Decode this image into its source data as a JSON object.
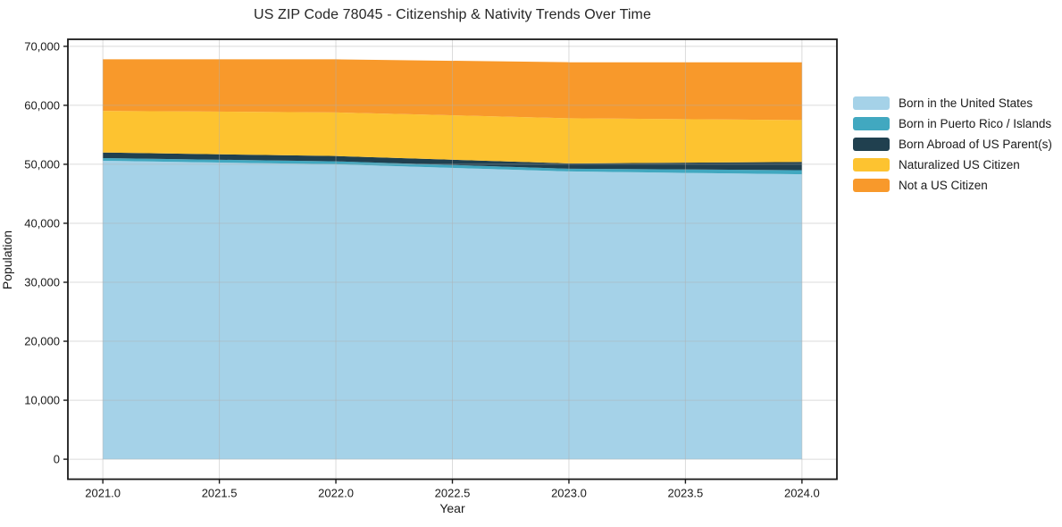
{
  "title": "US ZIP Code 78045 - Citizenship & Nativity Trends Over Time",
  "axes": {
    "xlabel": "Year",
    "ylabel": "Population"
  },
  "colors": {
    "spine": "#1a1a1a",
    "grid": "rgba(176,176,176,0.45)",
    "tick_text": "#1a1a1a",
    "background": "#ffffff"
  },
  "chart_data": {
    "type": "area",
    "stacked": true,
    "title": "US ZIP Code 78045 - Citizenship & Nativity Trends Over Time",
    "xlabel": "Year",
    "ylabel": "Population",
    "grid": true,
    "legend_position": "right-outside",
    "x": [
      2021,
      2022,
      2023,
      2024
    ],
    "series": [
      {
        "name": "Born in the United States",
        "color": "#a5d2e8",
        "values": [
          50600,
          50000,
          48800,
          48300
        ]
      },
      {
        "name": "Born in Puerto Rico / Islands",
        "color": "#41a8c0",
        "values": [
          450,
          500,
          450,
          700
        ]
      },
      {
        "name": "Born Abroad of US Parent(s)",
        "color": "#20404f",
        "values": [
          950,
          900,
          900,
          1400
        ]
      },
      {
        "name": "Naturalized US Citizen",
        "color": "#fdc330",
        "values": [
          7050,
          7400,
          7650,
          7100
        ]
      },
      {
        "name": "Not a US Citizen",
        "color": "#f8992b",
        "values": [
          8750,
          9000,
          9500,
          9800
        ]
      }
    ],
    "totals": [
      67800,
      67800,
      67300,
      67300
    ],
    "xlim": [
      2020.85,
      2024.15
    ],
    "ylim": [
      -3390,
      71190
    ],
    "x_tick_values": [
      2021.0,
      2021.5,
      2022.0,
      2022.5,
      2023.0,
      2023.5,
      2024.0
    ],
    "x_tick_labels": [
      "2021.0",
      "2021.5",
      "2022.0",
      "2022.5",
      "2023.0",
      "2023.5",
      "2024.0"
    ],
    "y_tick_values": [
      0,
      10000,
      20000,
      30000,
      40000,
      50000,
      60000,
      70000
    ],
    "y_tick_labels": [
      "0",
      "10,000",
      "20,000",
      "30,000",
      "40,000",
      "50,000",
      "60,000",
      "70,000"
    ]
  }
}
